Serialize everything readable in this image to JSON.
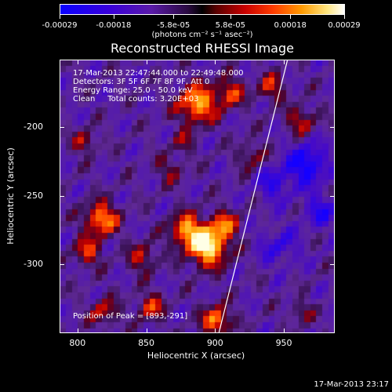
{
  "colorbar": {
    "tick_labels": [
      "-0.00029",
      "-0.00018",
      "-5.8e-05",
      "5.8e-05",
      "0.00018",
      "0.00029"
    ],
    "tick_values": [
      -0.00029,
      -0.00018,
      -5.8e-05,
      5.8e-05,
      0.00018,
      0.00029
    ],
    "unit": "(photons cm⁻² s⁻¹ asec⁻²)",
    "colors": {
      "min": "#0a00ff",
      "mid": "#000000",
      "max": "#ffffff"
    }
  },
  "title": "Reconstructed RHESSI Image",
  "info": {
    "time_range": "17-Mar-2013 22:47:44.000 to 22:49:48.000",
    "detectors": "Detectors: 3F 5F 6F 7F 8F 9F, Att 0",
    "energy": "Energy Range: 25.0 - 50.0 keV",
    "clean": "Clean     Total counts: 3.20E+03",
    "peak": "Position of Peak = [893,-291]"
  },
  "axes": {
    "xlabel": "Heliocentric X (arcsec)",
    "ylabel": "Heliocentric Y (arcsec)",
    "xticks": [
      "800",
      "850",
      "900",
      "950"
    ],
    "xtick_values": [
      800,
      850,
      900,
      950
    ],
    "yticks": [
      "-200",
      "-250",
      "-300"
    ],
    "ytick_values": [
      -200,
      -250,
      -300
    ],
    "xlim": [
      787,
      987
    ],
    "ylim": [
      -350,
      -151
    ]
  },
  "chart_data": {
    "type": "heatmap",
    "title": "Reconstructed RHESSI Image",
    "xlabel": "Heliocentric X (arcsec)",
    "ylabel": "Heliocentric Y (arcsec)",
    "xlim": [
      787,
      987
    ],
    "ylim": [
      -350,
      -151
    ],
    "color_range": [
      -0.00029,
      0.00029
    ],
    "peak_position": [
      893,
      -291
    ],
    "limb_line": [
      [
        902,
        -350
      ],
      [
        952,
        -151
      ]
    ]
  },
  "footer": "17-Mar-2013 23:17"
}
